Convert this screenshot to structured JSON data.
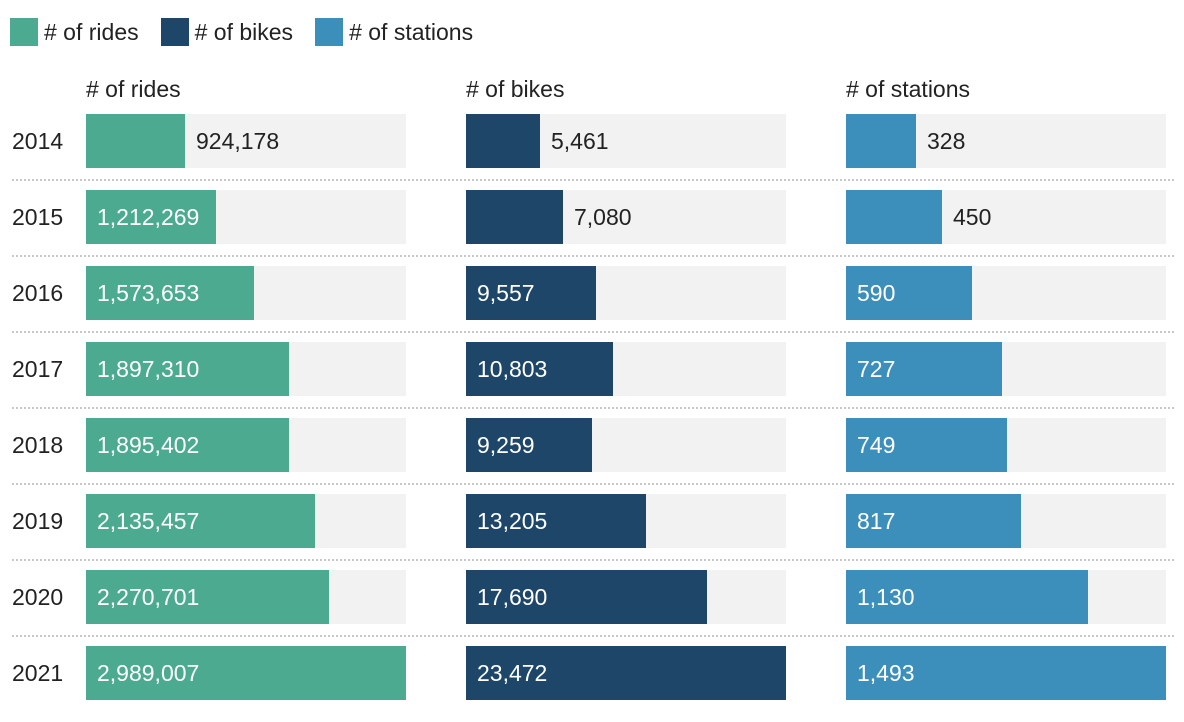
{
  "legend": [
    {
      "label": "# of rides",
      "color": "#4caa90"
    },
    {
      "label": "# of bikes",
      "color": "#1d4669"
    },
    {
      "label": "# of stations",
      "color": "#3d8fbb"
    }
  ],
  "chart_data": {
    "type": "bar",
    "orientation": "horizontal",
    "layout": "small-multiples",
    "categories": [
      "2014",
      "2015",
      "2016",
      "2017",
      "2018",
      "2019",
      "2020",
      "2021"
    ],
    "series": [
      {
        "name": "# of rides",
        "color": "#4caa90",
        "values": [
          924178,
          1212269,
          1573653,
          1897310,
          1895402,
          2135457,
          2270701,
          2989007
        ],
        "labels": [
          "924,178",
          "1,212,269",
          "1,573,653",
          "1,897,310",
          "1,895,402",
          "2,135,457",
          "2,270,701",
          "2,989,007"
        ]
      },
      {
        "name": "# of bikes",
        "color": "#1d4669",
        "values": [
          5461,
          7080,
          9557,
          10803,
          9259,
          13205,
          17690,
          23472
        ],
        "labels": [
          "5,461",
          "7,080",
          "9,557",
          "10,803",
          "9,259",
          "13,205",
          "17,690",
          "23,472"
        ]
      },
      {
        "name": "# of stations",
        "color": "#3d8fbb",
        "values": [
          328,
          450,
          590,
          727,
          749,
          817,
          1130,
          1493
        ],
        "labels": [
          "328",
          "450",
          "590",
          "727",
          "749",
          "817",
          "1,130",
          "1,493"
        ]
      }
    ],
    "legend_position": "top-left",
    "grid": false
  }
}
